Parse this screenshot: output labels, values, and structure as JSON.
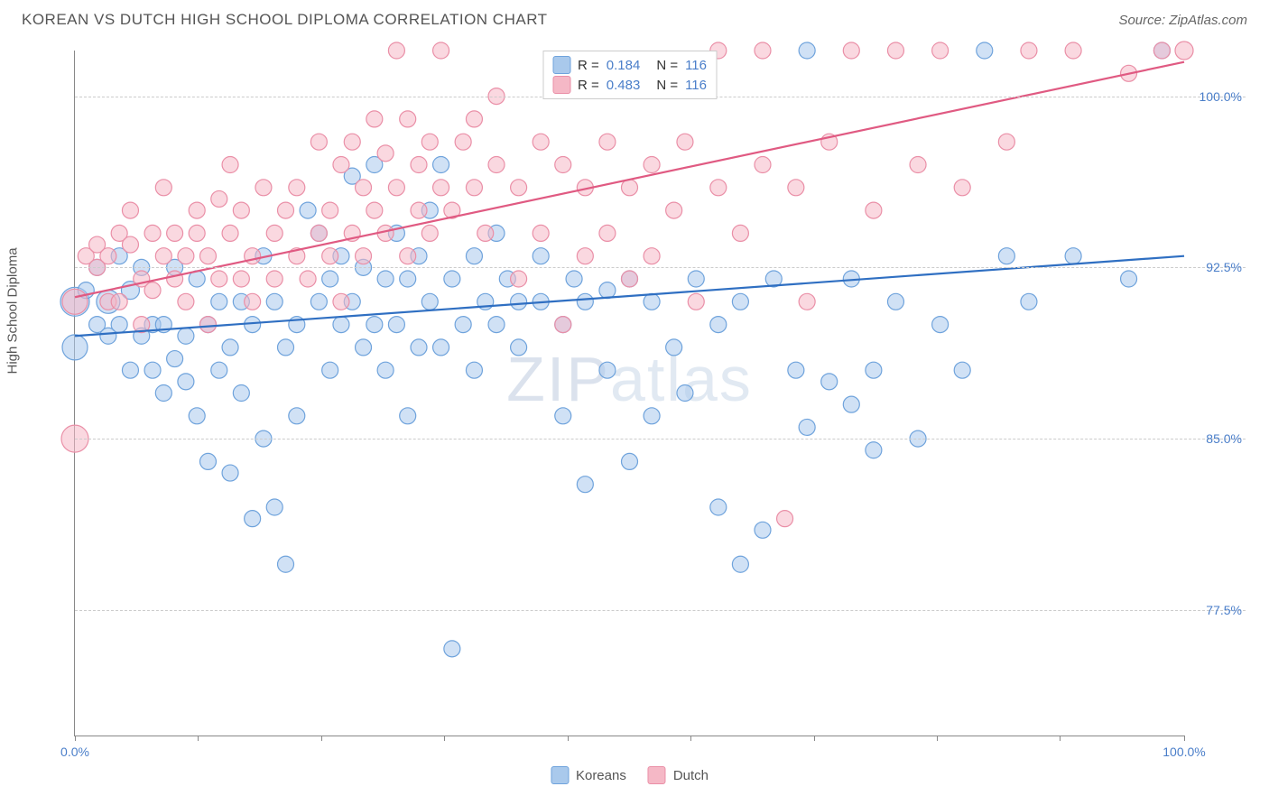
{
  "title": "KOREAN VS DUTCH HIGH SCHOOL DIPLOMA CORRELATION CHART",
  "source": "Source: ZipAtlas.com",
  "watermark": "ZIPatlas",
  "ylabel": "High School Diploma",
  "chart": {
    "type": "scatter",
    "background_color": "#ffffff",
    "grid_color": "#cccccc",
    "axis_color": "#888888",
    "xlim": [
      0,
      100
    ],
    "ylim": [
      72,
      102
    ],
    "xtick_positions": [
      0,
      11.1,
      22.2,
      33.3,
      44.4,
      55.5,
      66.6,
      77.7,
      88.8,
      100
    ],
    "xtick_labels": {
      "0": "0.0%",
      "100": "100.0%"
    },
    "ytick_positions": [
      77.5,
      85.0,
      92.5,
      100.0
    ],
    "ytick_labels": [
      "77.5%",
      "85.0%",
      "92.5%",
      "100.0%"
    ],
    "series": [
      {
        "name": "Koreans",
        "color_fill": "#a9c9ec",
        "color_stroke": "#6fa3dc",
        "fill_opacity": 0.55,
        "marker_radius": 9,
        "R": "0.184",
        "N": "116",
        "trend": {
          "x1": 0,
          "y1": 89.5,
          "x2": 100,
          "y2": 93.0,
          "color": "#2f6fc2",
          "width": 2.2
        },
        "points": [
          [
            0,
            91,
            16
          ],
          [
            0,
            89,
            14
          ],
          [
            1,
            91.5,
            9
          ],
          [
            2,
            90,
            9
          ],
          [
            2,
            92.5,
            9
          ],
          [
            3,
            91,
            13
          ],
          [
            3,
            89.5,
            9
          ],
          [
            4,
            93,
            9
          ],
          [
            4,
            90,
            9
          ],
          [
            5,
            88,
            9
          ],
          [
            5,
            91.5,
            10
          ],
          [
            6,
            92.5,
            9
          ],
          [
            6,
            89.5,
            9
          ],
          [
            7,
            90,
            9
          ],
          [
            7,
            88,
            9
          ],
          [
            8,
            90,
            9
          ],
          [
            8,
            87,
            9
          ],
          [
            9,
            88.5,
            9
          ],
          [
            9,
            92.5,
            9
          ],
          [
            10,
            89.5,
            9
          ],
          [
            10,
            87.5,
            9
          ],
          [
            11,
            92,
            9
          ],
          [
            11,
            86,
            9
          ],
          [
            12,
            84,
            9
          ],
          [
            12,
            90,
            9
          ],
          [
            13,
            91,
            9
          ],
          [
            13,
            88,
            9
          ],
          [
            14,
            89,
            9
          ],
          [
            14,
            83.5,
            9
          ],
          [
            15,
            91,
            9
          ],
          [
            15,
            87,
            9
          ],
          [
            16,
            81.5,
            9
          ],
          [
            16,
            90,
            9
          ],
          [
            17,
            93,
            9
          ],
          [
            17,
            85,
            9
          ],
          [
            18,
            82,
            9
          ],
          [
            18,
            91,
            9
          ],
          [
            19,
            79.5,
            9
          ],
          [
            19,
            89,
            9
          ],
          [
            20,
            90,
            9
          ],
          [
            20,
            86,
            9
          ],
          [
            21,
            95,
            9
          ],
          [
            22,
            91,
            9
          ],
          [
            22,
            94,
            9
          ],
          [
            23,
            92,
            9
          ],
          [
            23,
            88,
            9
          ],
          [
            24,
            90,
            9
          ],
          [
            24,
            93,
            9
          ],
          [
            25,
            96.5,
            9
          ],
          [
            25,
            91,
            9
          ],
          [
            26,
            89,
            9
          ],
          [
            26,
            92.5,
            9
          ],
          [
            27,
            97,
            9
          ],
          [
            27,
            90,
            9
          ],
          [
            28,
            92,
            9
          ],
          [
            28,
            88,
            9
          ],
          [
            29,
            94,
            9
          ],
          [
            29,
            90,
            9
          ],
          [
            30,
            92,
            9
          ],
          [
            30,
            86,
            9
          ],
          [
            31,
            93,
            9
          ],
          [
            31,
            89,
            9
          ],
          [
            32,
            91,
            9
          ],
          [
            32,
            95,
            9
          ],
          [
            33,
            97,
            9
          ],
          [
            33,
            89,
            9
          ],
          [
            34,
            75.8,
            9
          ],
          [
            34,
            92,
            9
          ],
          [
            35,
            90,
            9
          ],
          [
            36,
            93,
            9
          ],
          [
            36,
            88,
            9
          ],
          [
            37,
            91,
            9
          ],
          [
            38,
            94,
            9
          ],
          [
            38,
            90,
            9
          ],
          [
            39,
            92,
            9
          ],
          [
            40,
            91,
            9
          ],
          [
            40,
            89,
            9
          ],
          [
            42,
            91,
            9
          ],
          [
            42,
            93,
            9
          ],
          [
            44,
            90,
            9
          ],
          [
            44,
            86,
            9
          ],
          [
            45,
            92,
            9
          ],
          [
            46,
            83,
            9
          ],
          [
            46,
            91,
            9
          ],
          [
            48,
            88,
            9
          ],
          [
            48,
            91.5,
            9
          ],
          [
            50,
            84,
            9
          ],
          [
            50,
            92,
            9
          ],
          [
            52,
            86,
            9
          ],
          [
            52,
            91,
            9
          ],
          [
            54,
            89,
            9
          ],
          [
            55,
            87,
            9
          ],
          [
            56,
            92,
            9
          ],
          [
            58,
            90,
            9
          ],
          [
            58,
            82,
            9
          ],
          [
            60,
            79.5,
            9
          ],
          [
            60,
            91,
            9
          ],
          [
            62,
            81,
            9
          ],
          [
            63,
            92,
            9
          ],
          [
            65,
            88,
            9
          ],
          [
            66,
            85.5,
            9
          ],
          [
            66,
            102,
            9
          ],
          [
            68,
            87.5,
            9
          ],
          [
            70,
            86.5,
            9
          ],
          [
            70,
            92,
            9
          ],
          [
            72,
            84.5,
            9
          ],
          [
            72,
            88,
            9
          ],
          [
            74,
            91,
            9
          ],
          [
            76,
            85,
            9
          ],
          [
            78,
            90,
            9
          ],
          [
            80,
            88,
            9
          ],
          [
            82,
            102,
            9
          ],
          [
            84,
            93,
            9
          ],
          [
            86,
            91,
            9
          ],
          [
            90,
            93,
            9
          ],
          [
            95,
            92,
            9
          ],
          [
            98,
            102,
            9
          ]
        ]
      },
      {
        "name": "Dutch",
        "color_fill": "#f5b8c6",
        "color_stroke": "#ea8fa7",
        "fill_opacity": 0.55,
        "marker_radius": 9,
        "R": "0.483",
        "N": "116",
        "trend": {
          "x1": 0,
          "y1": 91.2,
          "x2": 100,
          "y2": 101.5,
          "color": "#e05a82",
          "width": 2.2
        },
        "points": [
          [
            0,
            91,
            14
          ],
          [
            0,
            85,
            15
          ],
          [
            1,
            93,
            9
          ],
          [
            2,
            92.5,
            9
          ],
          [
            2,
            93.5,
            9
          ],
          [
            3,
            91,
            9
          ],
          [
            3,
            93,
            9
          ],
          [
            4,
            94,
            9
          ],
          [
            4,
            91,
            9
          ],
          [
            5,
            93.5,
            9
          ],
          [
            5,
            95,
            9
          ],
          [
            6,
            92,
            9
          ],
          [
            6,
            90,
            9
          ],
          [
            7,
            94,
            9
          ],
          [
            7,
            91.5,
            9
          ],
          [
            8,
            93,
            9
          ],
          [
            8,
            96,
            9
          ],
          [
            9,
            92,
            9
          ],
          [
            9,
            94,
            9
          ],
          [
            10,
            91,
            9
          ],
          [
            10,
            93,
            9
          ],
          [
            11,
            95,
            9
          ],
          [
            11,
            94,
            9
          ],
          [
            12,
            90,
            9
          ],
          [
            12,
            93,
            9
          ],
          [
            13,
            95.5,
            9
          ],
          [
            13,
            92,
            9
          ],
          [
            14,
            94,
            9
          ],
          [
            14,
            97,
            9
          ],
          [
            15,
            92,
            9
          ],
          [
            15,
            95,
            9
          ],
          [
            16,
            93,
            9
          ],
          [
            16,
            91,
            9
          ],
          [
            17,
            96,
            9
          ],
          [
            18,
            94,
            9
          ],
          [
            18,
            92,
            9
          ],
          [
            19,
            95,
            9
          ],
          [
            20,
            93,
            9
          ],
          [
            20,
            96,
            9
          ],
          [
            21,
            92,
            9
          ],
          [
            22,
            98,
            9
          ],
          [
            22,
            94,
            9
          ],
          [
            23,
            95,
            9
          ],
          [
            23,
            93,
            9
          ],
          [
            24,
            97,
            9
          ],
          [
            24,
            91,
            9
          ],
          [
            25,
            94,
            9
          ],
          [
            25,
            98,
            9
          ],
          [
            26,
            96,
            9
          ],
          [
            26,
            93,
            9
          ],
          [
            27,
            95,
            9
          ],
          [
            27,
            99,
            9
          ],
          [
            28,
            94,
            9
          ],
          [
            28,
            97.5,
            9
          ],
          [
            29,
            102,
            9
          ],
          [
            29,
            96,
            9
          ],
          [
            30,
            93,
            9
          ],
          [
            30,
            99,
            9
          ],
          [
            31,
            95,
            9
          ],
          [
            31,
            97,
            9
          ],
          [
            32,
            98,
            9
          ],
          [
            32,
            94,
            9
          ],
          [
            33,
            102,
            9
          ],
          [
            33,
            96,
            9
          ],
          [
            34,
            95,
            9
          ],
          [
            35,
            98,
            9
          ],
          [
            36,
            99,
            9
          ],
          [
            36,
            96,
            9
          ],
          [
            37,
            94,
            9
          ],
          [
            38,
            97,
            9
          ],
          [
            38,
            100,
            9
          ],
          [
            40,
            96,
            9
          ],
          [
            40,
            92,
            9
          ],
          [
            42,
            98,
            9
          ],
          [
            42,
            94,
            9
          ],
          [
            44,
            90,
            9
          ],
          [
            44,
            97,
            9
          ],
          [
            46,
            96,
            9
          ],
          [
            46,
            93,
            9
          ],
          [
            48,
            94,
            9
          ],
          [
            48,
            98,
            9
          ],
          [
            50,
            92,
            9
          ],
          [
            50,
            96,
            9
          ],
          [
            52,
            97,
            9
          ],
          [
            52,
            93,
            9
          ],
          [
            54,
            95,
            9
          ],
          [
            55,
            98,
            9
          ],
          [
            56,
            91,
            9
          ],
          [
            58,
            96,
            9
          ],
          [
            58,
            102,
            9
          ],
          [
            60,
            94,
            9
          ],
          [
            62,
            97,
            9
          ],
          [
            62,
            102,
            9
          ],
          [
            64,
            81.5,
            9
          ],
          [
            65,
            96,
            9
          ],
          [
            66,
            91,
            9
          ],
          [
            68,
            98,
            9
          ],
          [
            70,
            102,
            9
          ],
          [
            72,
            95,
            9
          ],
          [
            74,
            102,
            9
          ],
          [
            76,
            97,
            9
          ],
          [
            78,
            102,
            9
          ],
          [
            80,
            96,
            9
          ],
          [
            84,
            98,
            9
          ],
          [
            86,
            102,
            9
          ],
          [
            90,
            102,
            9
          ],
          [
            95,
            101,
            9
          ],
          [
            98,
            102,
            9
          ],
          [
            100,
            102,
            10
          ]
        ]
      }
    ]
  },
  "legend_bottom": [
    "Koreans",
    "Dutch"
  ]
}
